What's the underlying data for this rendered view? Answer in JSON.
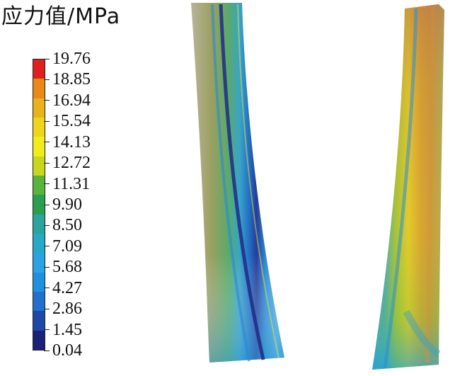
{
  "legend": {
    "title": "应力值/MPa",
    "ticks": [
      "19.76",
      "18.85",
      "16.94",
      "15.54",
      "14.13",
      "12.72",
      "11.31",
      "9.90",
      "8.50",
      "7.09",
      "5.68",
      "4.27",
      "2.86",
      "1.45",
      "0.04"
    ],
    "colors": [
      "#e0201c",
      "#e98a18",
      "#eab21a",
      "#eed51a",
      "#f2ec1c",
      "#c8d61e",
      "#58b43a",
      "#28a050",
      "#2aa49c",
      "#27a8c6",
      "#2aa2e4",
      "#1f8fe0",
      "#2171cc",
      "#1c48a8",
      "#1b2078"
    ]
  },
  "colors": {
    "background": "#ffffff",
    "text": "#111111"
  }
}
